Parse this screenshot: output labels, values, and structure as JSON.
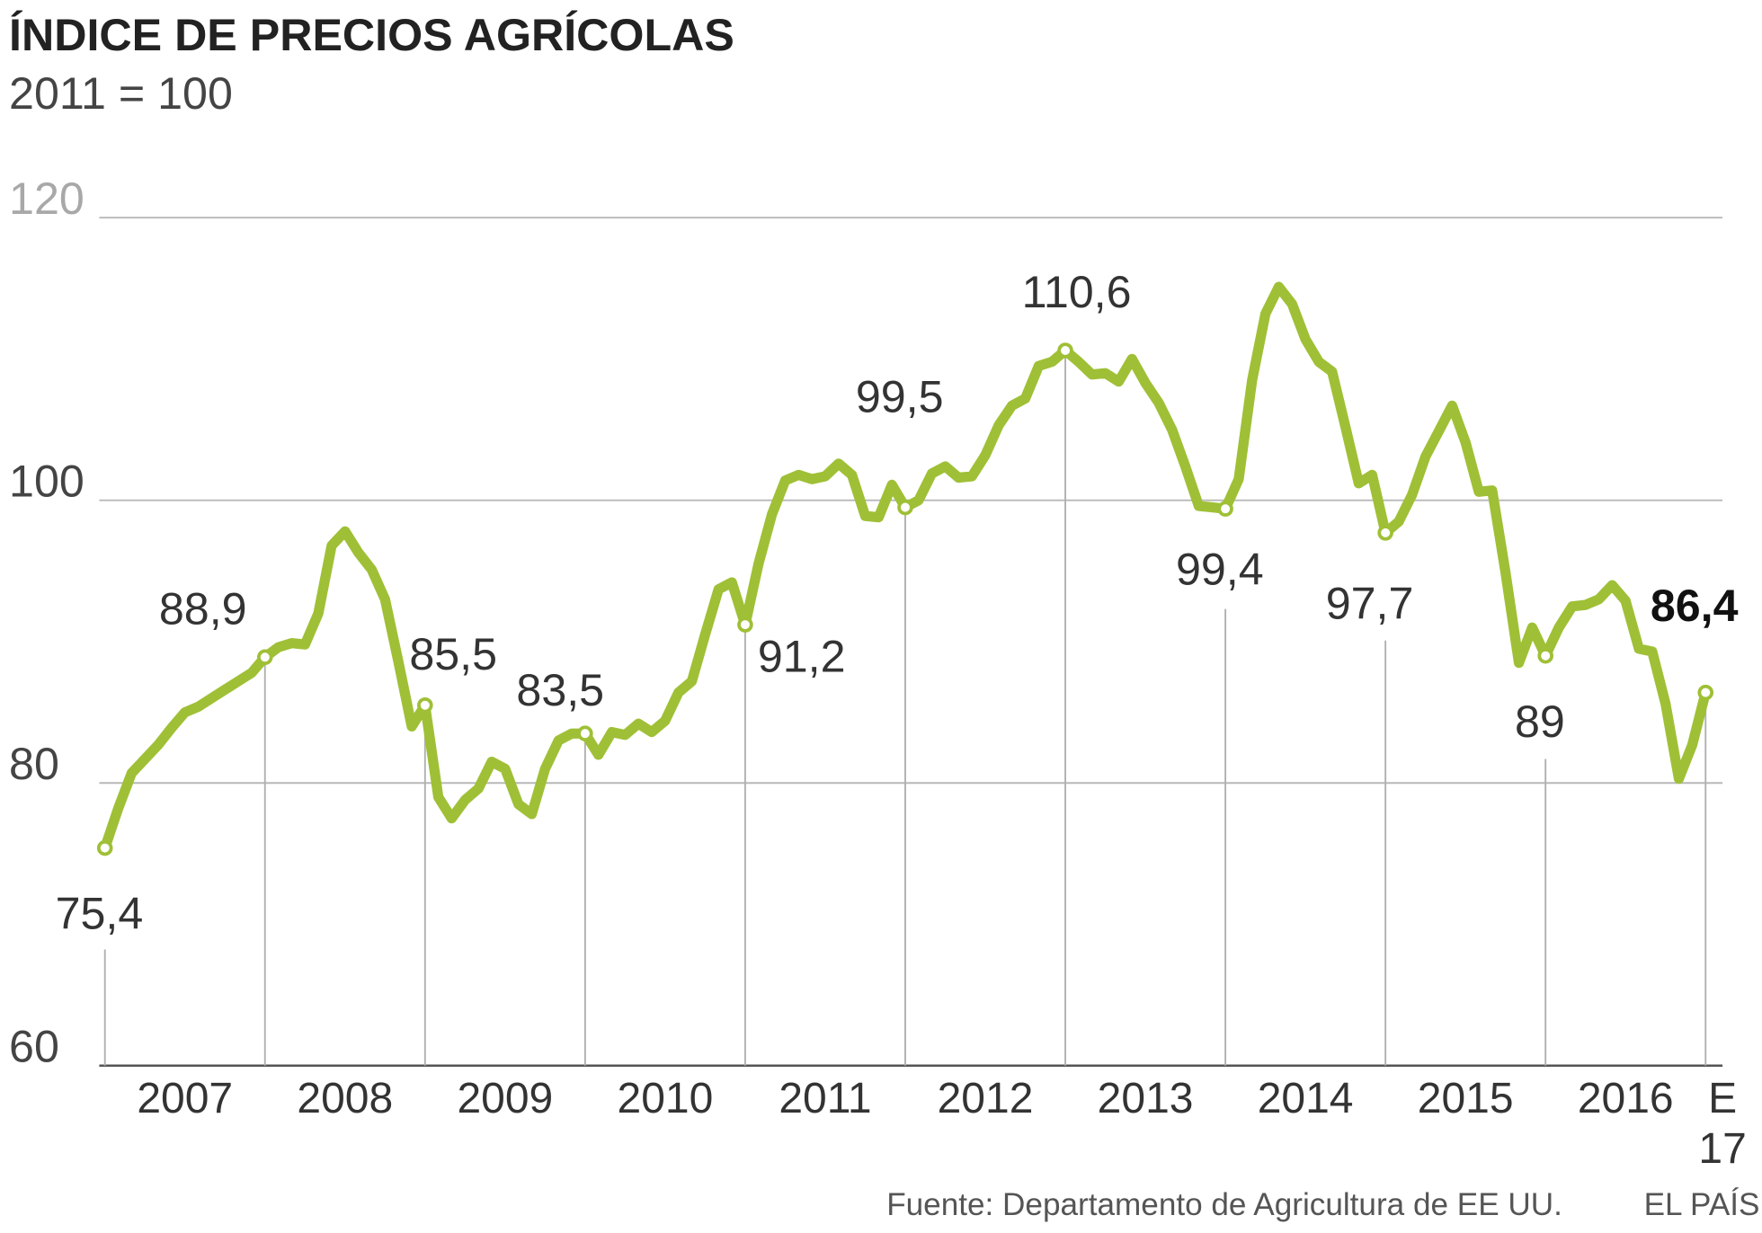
{
  "chart_data": {
    "type": "line",
    "title": "ÍNDICE DE PRECIOS AGRÍCOLAS",
    "subtitle": "2011 = 100",
    "source": "Fuente: Departamento de Agricultura de EE UU.",
    "credit": "EL PAÍS",
    "ylim": [
      60,
      120
    ],
    "yticks": [
      60,
      80,
      100,
      120
    ],
    "grid": true,
    "color": "#9fc036",
    "categories": [
      null,
      null,
      null,
      null,
      null,
      null,
      "2007",
      null,
      null,
      null,
      null,
      null,
      null,
      null,
      null,
      null,
      null,
      null,
      "2008",
      null,
      null,
      null,
      null,
      null,
      null,
      null,
      null,
      null,
      null,
      null,
      "2009",
      null,
      null,
      null,
      null,
      null,
      null,
      null,
      null,
      null,
      null,
      null,
      "2010",
      null,
      null,
      null,
      null,
      null,
      null,
      null,
      null,
      null,
      null,
      null,
      "2011",
      null,
      null,
      null,
      null,
      null,
      null,
      null,
      null,
      null,
      null,
      null,
      "2012",
      null,
      null,
      null,
      null,
      null,
      null,
      null,
      null,
      null,
      null,
      null,
      "2013",
      null,
      null,
      null,
      null,
      null,
      null,
      null,
      null,
      null,
      null,
      null,
      "2014",
      null,
      null,
      null,
      null,
      null,
      null,
      null,
      null,
      null,
      null,
      null,
      "2015",
      null,
      null,
      null,
      null,
      null,
      null,
      null,
      null,
      null,
      null,
      null,
      "2016",
      null,
      null,
      null,
      null,
      null,
      "E\n17"
    ],
    "values": [
      75.4,
      78.2,
      80.7,
      81.7,
      82.7,
      83.9,
      85.0,
      85.4,
      86.0,
      86.6,
      87.2,
      87.8,
      88.9,
      89.6,
      89.9,
      89.8,
      92.0,
      96.8,
      97.8,
      96.3,
      95.1,
      93.0,
      88.6,
      84.0,
      85.5,
      79.0,
      77.5,
      78.8,
      79.6,
      81.5,
      81.0,
      78.5,
      77.8,
      81.0,
      83.0,
      83.5,
      83.5,
      82.0,
      83.6,
      83.4,
      84.2,
      83.6,
      84.4,
      86.4,
      87.2,
      90.5,
      93.7,
      94.2,
      91.2,
      95.5,
      99.0,
      101.4,
      101.8,
      101.5,
      101.7,
      102.6,
      101.8,
      98.9,
      98.8,
      101.1,
      99.5,
      100.0,
      101.9,
      102.4,
      101.6,
      101.7,
      103.2,
      105.3,
      106.7,
      107.2,
      109.5,
      109.8,
      110.6,
      109.8,
      108.9,
      109.0,
      108.4,
      110.0,
      108.3,
      106.9,
      105.0,
      102.4,
      99.6,
      99.5,
      99.4,
      101.5,
      108.5,
      113.2,
      115.1,
      113.9,
      111.4,
      109.8,
      109.1,
      105.2,
      101.2,
      101.8,
      97.7,
      98.5,
      100.4,
      103.1,
      104.9,
      106.7,
      104.1,
      100.6,
      100.7,
      94.9,
      88.5,
      91.0,
      89.0,
      91.0,
      92.5,
      92.6,
      93.0,
      94.0,
      92.9,
      89.5,
      89.3,
      85.6,
      80.3,
      82.7,
      86.4
    ],
    "value_labels": [
      "75,4",
      null,
      null,
      null,
      null,
      null,
      null,
      null,
      null,
      null,
      null,
      null,
      "88,9",
      null,
      null,
      null,
      null,
      null,
      null,
      null,
      null,
      null,
      null,
      null,
      "85,5",
      null,
      null,
      null,
      null,
      null,
      null,
      null,
      null,
      null,
      null,
      null,
      "83,5",
      null,
      null,
      null,
      null,
      null,
      null,
      null,
      null,
      null,
      null,
      null,
      "91,2",
      null,
      null,
      null,
      null,
      null,
      null,
      null,
      null,
      null,
      null,
      null,
      "99,5",
      null,
      null,
      null,
      null,
      null,
      null,
      null,
      null,
      null,
      null,
      null,
      "110,6",
      null,
      null,
      null,
      null,
      null,
      null,
      null,
      null,
      null,
      null,
      null,
      "99,4",
      null,
      null,
      null,
      null,
      null,
      null,
      null,
      null,
      null,
      null,
      null,
      "97,7",
      null,
      null,
      null,
      null,
      null,
      null,
      null,
      null,
      null,
      null,
      null,
      "89",
      null,
      null,
      null,
      null,
      null,
      null,
      null,
      null,
      null,
      null,
      null,
      "86,4"
    ]
  }
}
